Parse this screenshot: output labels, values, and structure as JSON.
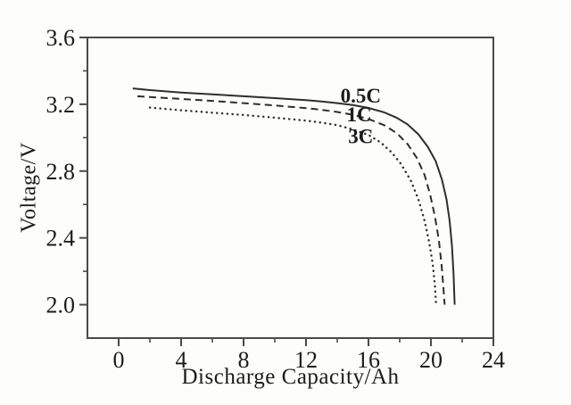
{
  "figure": {
    "background": "#fdfdfc",
    "axis_color": "#4a4a4a",
    "line_color": "#2e2e2e",
    "text_color": "#1c1c1c"
  },
  "chart_data": {
    "type": "line",
    "title": "",
    "xlabel": "Discharge Capacity/Ah",
    "ylabel": "Voltage/V",
    "xlim": [
      -2,
      24
    ],
    "ylim": [
      1.8,
      3.6
    ],
    "grid": false,
    "legend_position": "inline-curve-labels",
    "x_ticks": {
      "values": [
        0,
        4,
        8,
        12,
        16,
        20,
        24
      ],
      "labels": [
        "0",
        "4",
        "8",
        "12",
        "16",
        "20",
        "24"
      ],
      "minor": [
        2,
        6,
        10,
        14,
        18,
        22
      ]
    },
    "y_ticks": {
      "values": [
        3.6,
        3.2,
        2.8,
        2.4,
        2.0
      ],
      "labels": [
        "3.6",
        "3.2",
        "2.8",
        "2.4",
        "2.0"
      ],
      "minor": [
        3.4,
        3.0,
        2.6,
        2.2
      ]
    },
    "series": [
      {
        "name": "0.5C",
        "style": "solid",
        "points": [
          [
            0.9,
            3.295
          ],
          [
            2,
            3.285
          ],
          [
            4,
            3.27
          ],
          [
            6,
            3.26
          ],
          [
            8,
            3.248
          ],
          [
            10,
            3.237
          ],
          [
            12,
            3.225
          ],
          [
            13,
            3.217
          ],
          [
            14,
            3.207
          ],
          [
            15,
            3.195
          ],
          [
            16,
            3.178
          ],
          [
            17,
            3.152
          ],
          [
            17.8,
            3.12
          ],
          [
            18.5,
            3.08
          ],
          [
            19.2,
            3.02
          ],
          [
            19.8,
            2.945
          ],
          [
            20.3,
            2.86
          ],
          [
            20.7,
            2.75
          ],
          [
            21.0,
            2.63
          ],
          [
            21.2,
            2.5
          ],
          [
            21.35,
            2.35
          ],
          [
            21.45,
            2.18
          ],
          [
            21.52,
            2.0
          ]
        ]
      },
      {
        "name": "1C",
        "style": "dashed",
        "points": [
          [
            1.2,
            3.248
          ],
          [
            2,
            3.243
          ],
          [
            4,
            3.232
          ],
          [
            6,
            3.22
          ],
          [
            8,
            3.207
          ],
          [
            10,
            3.193
          ],
          [
            12,
            3.177
          ],
          [
            13,
            3.167
          ],
          [
            14,
            3.154
          ],
          [
            15,
            3.137
          ],
          [
            16,
            3.112
          ],
          [
            17,
            3.075
          ],
          [
            17.8,
            3.028
          ],
          [
            18.5,
            2.962
          ],
          [
            19.1,
            2.878
          ],
          [
            19.6,
            2.775
          ],
          [
            19.95,
            2.66
          ],
          [
            20.25,
            2.53
          ],
          [
            20.5,
            2.39
          ],
          [
            20.68,
            2.24
          ],
          [
            20.8,
            2.1
          ],
          [
            20.88,
            2.0
          ]
        ]
      },
      {
        "name": "3C",
        "style": "dotted",
        "points": [
          [
            2.0,
            3.18
          ],
          [
            3,
            3.172
          ],
          [
            4,
            3.164
          ],
          [
            6,
            3.15
          ],
          [
            8,
            3.136
          ],
          [
            10,
            3.12
          ],
          [
            12,
            3.102
          ],
          [
            13,
            3.09
          ],
          [
            14,
            3.075
          ],
          [
            15,
            3.05
          ],
          [
            16,
            3.016
          ],
          [
            16.8,
            2.97
          ],
          [
            17.5,
            2.91
          ],
          [
            18.1,
            2.84
          ],
          [
            18.7,
            2.745
          ],
          [
            19.2,
            2.63
          ],
          [
            19.6,
            2.5
          ],
          [
            19.9,
            2.37
          ],
          [
            20.12,
            2.24
          ],
          [
            20.25,
            2.12
          ],
          [
            20.33,
            2.0
          ]
        ]
      }
    ],
    "annotations": [
      {
        "text": "0.5C",
        "x": 15.5,
        "y": 3.253
      },
      {
        "text": "1C",
        "x": 15.4,
        "y": 3.14
      },
      {
        "text": "3C",
        "x": 15.5,
        "y": 3.01
      }
    ]
  }
}
